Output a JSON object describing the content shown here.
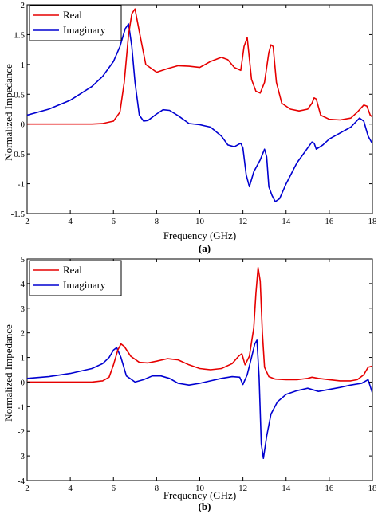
{
  "chart_data": [
    {
      "type": "line",
      "panel": "(a)",
      "xlabel": "Frequency (GHz)",
      "ylabel": "Normalized Impedance",
      "xlim": [
        2,
        18
      ],
      "ylim": [
        -1.5,
        2
      ],
      "xticks": [
        "2",
        "4",
        "6",
        "8",
        "10",
        "12",
        "14",
        "16",
        "18"
      ],
      "yticks": [
        "-1.5",
        "-1",
        "-0.5",
        "0",
        "0.5",
        "1",
        "1.5",
        "2"
      ],
      "grid": false,
      "legend_position": "top-left",
      "series": [
        {
          "name": "Real",
          "color": "#e60000",
          "x": [
            2,
            3,
            4,
            5,
            5.5,
            6,
            6.3,
            6.5,
            6.7,
            6.85,
            7.0,
            7.2,
            7.5,
            8,
            8.5,
            9,
            9.5,
            10,
            10.5,
            11,
            11.3,
            11.6,
            11.9,
            12.05,
            12.2,
            12.4,
            12.6,
            12.8,
            13.0,
            13.2,
            13.3,
            13.4,
            13.55,
            13.8,
            14.2,
            14.6,
            15.0,
            15.2,
            15.3,
            15.4,
            15.6,
            16.0,
            16.5,
            17.0,
            17.3,
            17.6,
            17.75,
            17.9,
            18
          ],
          "y": [
            0,
            0,
            0,
            0,
            0.01,
            0.05,
            0.2,
            0.7,
            1.5,
            1.85,
            1.93,
            1.55,
            1.0,
            0.87,
            0.93,
            0.98,
            0.97,
            0.95,
            1.05,
            1.12,
            1.08,
            0.95,
            0.9,
            1.3,
            1.45,
            0.75,
            0.55,
            0.52,
            0.7,
            1.2,
            1.33,
            1.3,
            0.7,
            0.35,
            0.25,
            0.22,
            0.25,
            0.35,
            0.44,
            0.42,
            0.15,
            0.08,
            0.07,
            0.1,
            0.2,
            0.32,
            0.3,
            0.15,
            0.12
          ]
        },
        {
          "name": "Imaginary",
          "color": "#0000d0",
          "x": [
            2,
            3,
            4,
            5,
            5.5,
            6,
            6.3,
            6.55,
            6.7,
            6.85,
            7.0,
            7.2,
            7.4,
            7.6,
            8,
            8.3,
            8.6,
            9,
            9.5,
            10,
            10.5,
            11,
            11.3,
            11.6,
            11.9,
            12.0,
            12.15,
            12.3,
            12.5,
            12.8,
            13.0,
            13.1,
            13.2,
            13.35,
            13.5,
            13.7,
            14,
            14.5,
            15,
            15.2,
            15.3,
            15.4,
            15.7,
            16,
            16.5,
            17,
            17.4,
            17.6,
            17.8,
            18
          ],
          "y": [
            0.15,
            0.25,
            0.4,
            0.63,
            0.8,
            1.05,
            1.3,
            1.6,
            1.68,
            1.3,
            0.7,
            0.15,
            0.05,
            0.06,
            0.17,
            0.24,
            0.23,
            0.14,
            0.01,
            -0.01,
            -0.05,
            -0.2,
            -0.35,
            -0.38,
            -0.32,
            -0.4,
            -0.85,
            -1.05,
            -0.8,
            -0.6,
            -0.42,
            -0.55,
            -1.05,
            -1.2,
            -1.3,
            -1.25,
            -1.0,
            -0.65,
            -0.4,
            -0.3,
            -0.32,
            -0.42,
            -0.35,
            -0.25,
            -0.15,
            -0.05,
            0.1,
            0.05,
            -0.2,
            -0.33
          ]
        }
      ]
    },
    {
      "type": "line",
      "panel": "(b)",
      "xlabel": "Frequency (GHz)",
      "ylabel": "Normalized Impedance",
      "xlim": [
        2,
        18
      ],
      "ylim": [
        -4,
        5
      ],
      "xticks": [
        "2",
        "4",
        "6",
        "8",
        "10",
        "12",
        "14",
        "16",
        "18"
      ],
      "yticks": [
        "-4",
        "-3",
        "-2",
        "-1",
        "0",
        "1",
        "2",
        "3",
        "4",
        "5"
      ],
      "grid": false,
      "legend_position": "top-left",
      "series": [
        {
          "name": "Real",
          "color": "#e60000",
          "x": [
            2,
            3,
            4,
            5,
            5.5,
            5.8,
            6.0,
            6.2,
            6.35,
            6.5,
            6.8,
            7.2,
            7.6,
            8,
            8.5,
            9,
            9.5,
            10,
            10.5,
            11,
            11.5,
            11.8,
            11.95,
            12.1,
            12.3,
            12.5,
            12.6,
            12.7,
            12.8,
            12.9,
            13.0,
            13.2,
            13.5,
            14,
            14.5,
            15,
            15.2,
            15.5,
            16,
            16.5,
            17,
            17.3,
            17.6,
            17.8,
            18
          ],
          "y": [
            0,
            0,
            0,
            0,
            0.05,
            0.2,
            0.7,
            1.3,
            1.55,
            1.45,
            1.05,
            0.8,
            0.78,
            0.85,
            0.95,
            0.9,
            0.7,
            0.55,
            0.5,
            0.55,
            0.75,
            1.05,
            1.15,
            0.7,
            1.05,
            2.2,
            3.6,
            4.65,
            4.1,
            2.0,
            0.6,
            0.22,
            0.12,
            0.1,
            0.1,
            0.15,
            0.2,
            0.15,
            0.1,
            0.05,
            0.05,
            0.1,
            0.3,
            0.6,
            0.65
          ]
        },
        {
          "name": "Imaginary",
          "color": "#0000d0",
          "x": [
            2,
            3,
            4,
            5,
            5.5,
            5.8,
            6.0,
            6.15,
            6.35,
            6.6,
            7.0,
            7.4,
            7.8,
            8.2,
            8.6,
            9,
            9.5,
            10,
            10.5,
            11,
            11.5,
            11.85,
            12.0,
            12.2,
            12.4,
            12.55,
            12.65,
            12.75,
            12.85,
            12.95,
            13.1,
            13.3,
            13.6,
            14,
            14.5,
            15,
            15.5,
            16,
            16.5,
            17,
            17.5,
            17.8,
            18
          ],
          "y": [
            0.15,
            0.22,
            0.35,
            0.55,
            0.75,
            1.0,
            1.3,
            1.4,
            1.0,
            0.25,
            0,
            0.1,
            0.25,
            0.25,
            0.15,
            -0.05,
            -0.12,
            -0.05,
            0.05,
            0.15,
            0.22,
            0.2,
            -0.1,
            0.3,
            1.0,
            1.55,
            1.7,
            0.2,
            -2.5,
            -3.1,
            -2.2,
            -1.3,
            -0.8,
            -0.5,
            -0.35,
            -0.25,
            -0.38,
            -0.3,
            -0.22,
            -0.12,
            -0.05,
            0.1,
            -0.45
          ]
        }
      ]
    }
  ]
}
